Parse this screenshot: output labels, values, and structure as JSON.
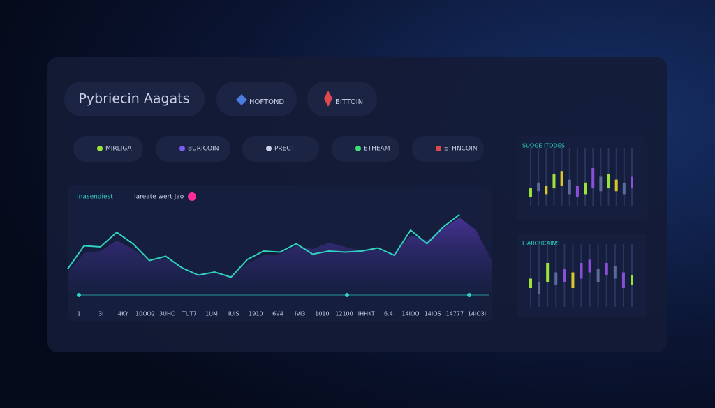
{
  "header": {
    "title": "Pybriecin Aagats"
  },
  "pills": [
    {
      "label": "HOFTOND"
    },
    {
      "label": "BITTOIN"
    }
  ],
  "chips": [
    "MIRLIGA",
    "BURICOIN",
    "PRECT",
    "ETHEAM",
    "ETHNCOIN"
  ],
  "main_chart": {
    "type": "line",
    "legend": [
      "Inasendiest",
      "Iareate wert Jao"
    ],
    "x_labels": [
      "1",
      "3I",
      "4KY",
      "10OO2",
      "3UHO",
      "TUT7",
      "1UM",
      "IUIS",
      "1910",
      "6V4",
      "IVI3",
      "1010",
      "12100",
      "IHHKT",
      "6.4",
      "14IOO",
      "14IOS",
      "14777",
      "14IO3I"
    ],
    "ylim": [
      0,
      100
    ],
    "series": [
      {
        "color": "#6a3fc9",
        "values": [
          20,
          38,
          40,
          50,
          42,
          30,
          33,
          25,
          18,
          20,
          17,
          28,
          36,
          37,
          45,
          42,
          48,
          44,
          40,
          41,
          38,
          55,
          50,
          62,
          72,
          60,
          30
        ]
      },
      {
        "color": "#2fd3c0",
        "values": [
          23,
          45,
          44,
          58,
          47,
          31,
          35,
          24,
          17,
          20,
          15,
          32,
          40,
          39,
          47,
          37,
          40,
          39,
          40,
          43,
          36,
          60,
          47,
          63,
          75,
          null,
          null
        ]
      }
    ]
  },
  "side_panels": [
    {
      "title": "SUOGE ITODES",
      "ylim": [
        0,
        100
      ],
      "bars": [
        {
          "low": 15,
          "high": 30,
          "color": "#9be33a"
        },
        {
          "low": 25,
          "high": 40,
          "color": "#5a6a9a"
        },
        {
          "low": 20,
          "high": 35,
          "color": "#d9c62a"
        },
        {
          "low": 30,
          "high": 55,
          "color": "#9be33a"
        },
        {
          "low": 35,
          "high": 60,
          "color": "#d9c62a"
        },
        {
          "low": 20,
          "high": 45,
          "color": "#5a6a9a"
        },
        {
          "low": 15,
          "high": 35,
          "color": "#8a4fd6"
        },
        {
          "low": 20,
          "high": 40,
          "color": "#9be33a"
        },
        {
          "low": 30,
          "high": 65,
          "color": "#8a4fd6"
        },
        {
          "low": 25,
          "high": 50,
          "color": "#5a6a9a"
        },
        {
          "low": 30,
          "high": 55,
          "color": "#9be33a"
        },
        {
          "low": 25,
          "high": 45,
          "color": "#d9c62a"
        },
        {
          "low": 20,
          "high": 40,
          "color": "#5a6a9a"
        },
        {
          "low": 30,
          "high": 50,
          "color": "#8a4fd6"
        }
      ]
    },
    {
      "title": "LIARCHCAINS",
      "ylim": [
        0,
        100
      ],
      "bars": [
        {
          "low": 30,
          "high": 45,
          "color": "#9be33a"
        },
        {
          "low": 20,
          "high": 40,
          "color": "#5a6a9a"
        },
        {
          "low": 40,
          "high": 70,
          "color": "#9be33a"
        },
        {
          "low": 35,
          "high": 55,
          "color": "#5a6a9a"
        },
        {
          "low": 40,
          "high": 60,
          "color": "#8a4fd6"
        },
        {
          "low": 30,
          "high": 55,
          "color": "#d9c62a"
        },
        {
          "low": 45,
          "high": 70,
          "color": "#8a4fd6"
        },
        {
          "low": 55,
          "high": 75,
          "color": "#8a4fd6"
        },
        {
          "low": 40,
          "high": 60,
          "color": "#5a6a9a"
        },
        {
          "low": 50,
          "high": 70,
          "color": "#8a4fd6"
        },
        {
          "low": 45,
          "high": 65,
          "color": "#5a6a9a"
        },
        {
          "low": 30,
          "high": 55,
          "color": "#8a4fd6"
        },
        {
          "low": 35,
          "high": 50,
          "color": "#9be33a"
        }
      ]
    }
  ]
}
